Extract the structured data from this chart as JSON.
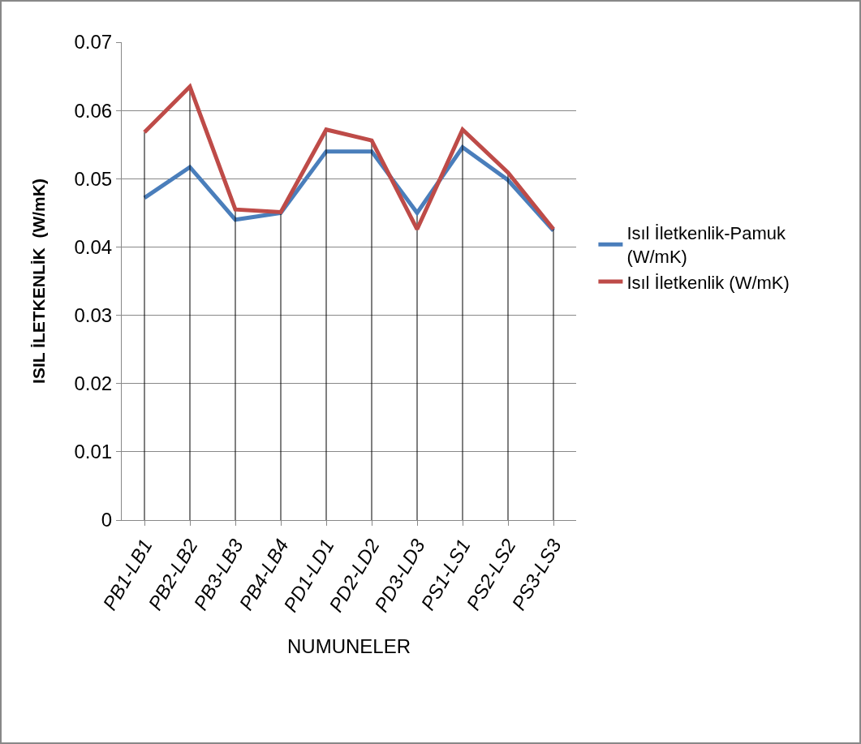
{
  "chart_data": {
    "type": "line",
    "xlabel": "NUMUNELER",
    "ylabel": "ISIL İLETKENLİK  (W/mK)",
    "categories": [
      "PB1-LB1",
      "PB2-LB2",
      "PB3-LB3",
      "PB4-LB4",
      "PD1-LD1",
      "PD2-LD2",
      "PD3-LD3",
      "PS1-LS1",
      "PS2-LS2",
      "PS3-LS3"
    ],
    "series": [
      {
        "name": "Isıl İletkenlik-Pamuk (W/mK)",
        "color": "#4a7ebb",
        "values": [
          0.0472,
          0.0517,
          0.044,
          0.045,
          0.054,
          0.054,
          0.045,
          0.0546,
          0.0498,
          0.0424
        ],
        "errors": [
          null,
          null,
          null,
          null,
          null,
          null,
          [
            0,
            0.045
          ],
          null,
          null,
          null
        ]
      },
      {
        "name": "Isıl İletkenlik (W/mK)",
        "color": "#be4b48",
        "values": [
          0.0568,
          0.0635,
          0.0455,
          0.0451,
          0.0572,
          0.0556,
          0.0426,
          0.0572,
          0.0509,
          0.0426
        ],
        "errors": [
          [
            0,
            0.0568
          ],
          [
            0,
            0.0635
          ],
          [
            0,
            0.0455
          ],
          [
            0,
            0.0451
          ],
          [
            0,
            0.0572
          ],
          [
            0,
            0.0556
          ],
          null,
          [
            0,
            0.0572
          ],
          [
            0,
            0.0509
          ],
          [
            0,
            0.0426
          ]
        ]
      }
    ],
    "ylim": [
      0,
      0.07
    ],
    "yticks": [
      0,
      0.01,
      0.02,
      0.03,
      0.04,
      0.05,
      0.06,
      0.07
    ],
    "grid": "y",
    "legend": "right",
    "marker": "none",
    "line_style": "solid"
  }
}
